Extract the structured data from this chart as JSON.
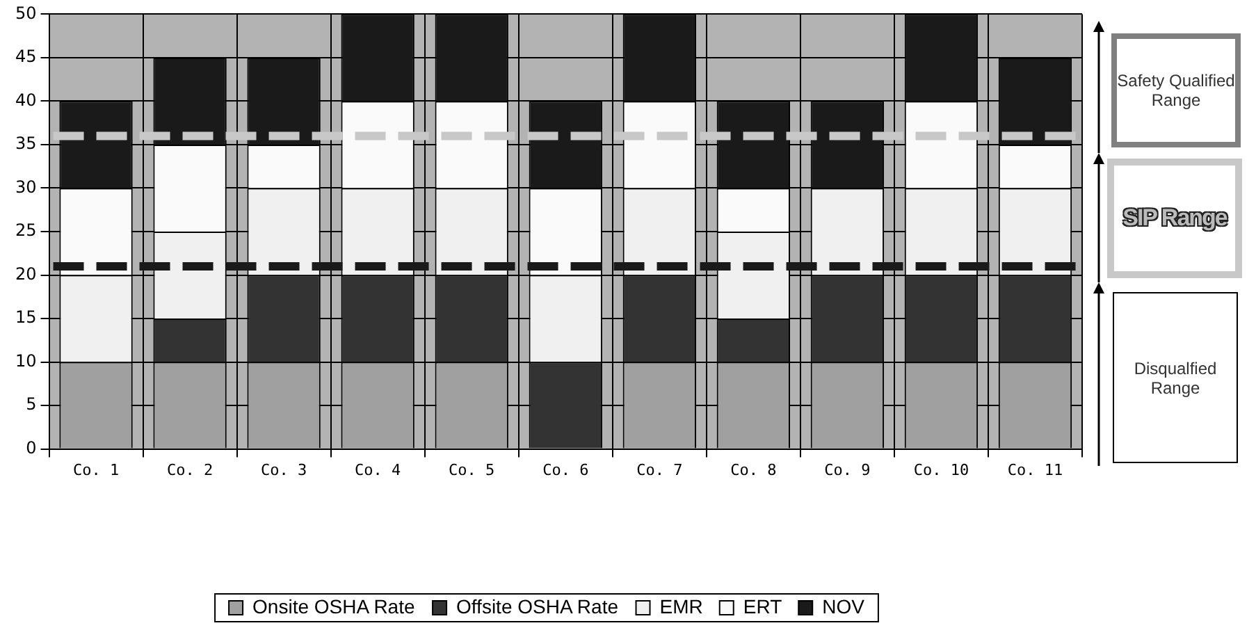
{
  "chart_data": {
    "type": "bar",
    "stacked": true,
    "categories": [
      "Co. 1",
      "Co. 2",
      "Co. 3",
      "Co. 4",
      "Co. 5",
      "Co. 6",
      "Co. 7",
      "Co. 8",
      "Co. 9",
      "Co. 10",
      "Co. 11"
    ],
    "series": [
      {
        "name": "Onsite OSHA Rate",
        "color": "#a0a0a0",
        "values": [
          10,
          10,
          10,
          10,
          10,
          0,
          10,
          10,
          10,
          10,
          10
        ]
      },
      {
        "name": "Offsite OSHA Rate",
        "color": "#333333",
        "values": [
          0,
          5,
          10,
          10,
          10,
          10,
          10,
          5,
          10,
          10,
          10
        ]
      },
      {
        "name": "EMR",
        "color": "#f0f0f0",
        "values": [
          10,
          10,
          10,
          10,
          10,
          10,
          10,
          10,
          10,
          10,
          10
        ]
      },
      {
        "name": "ERT",
        "color": "#fafafa",
        "values": [
          10,
          10,
          5,
          10,
          10,
          10,
          10,
          5,
          0,
          10,
          5
        ]
      },
      {
        "name": "NOV",
        "color": "#1a1a1a",
        "values": [
          10,
          10,
          10,
          10,
          10,
          10,
          10,
          10,
          10,
          10,
          10
        ]
      }
    ],
    "ylim": [
      0,
      50
    ],
    "yticks": [
      0,
      5,
      10,
      15,
      20,
      25,
      30,
      35,
      40,
      45,
      50
    ],
    "grid": true,
    "legend": "bottom",
    "ref_lines": [
      {
        "axis": "y",
        "value": 36,
        "color": "#c8c8c8",
        "line_style": "dashed"
      },
      {
        "axis": "y",
        "value": 21,
        "color": "#1a1a1a",
        "line_style": "dashed"
      }
    ],
    "annotations": [
      "Safety Qualified Range",
      "SIP Range",
      "Disqualfied Range"
    ]
  }
}
